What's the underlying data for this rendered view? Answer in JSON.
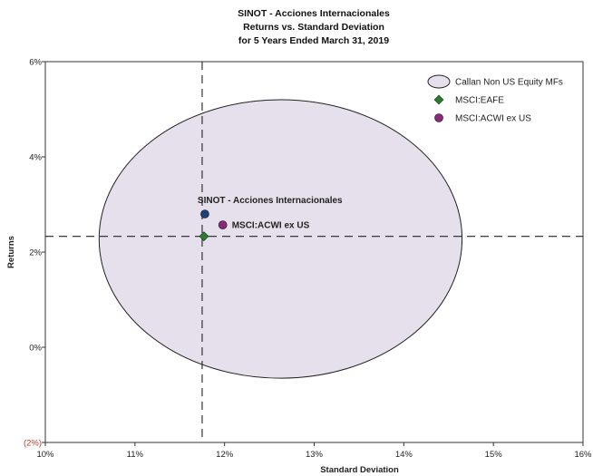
{
  "chart_data": {
    "type": "scatter",
    "title": [
      "SINOT - Acciones Internacionales",
      "Returns vs. Standard Deviation",
      "for 5 Years Ended March 31, 2019"
    ],
    "xlabel": "Standard Deviation",
    "ylabel": "Returns",
    "xlim": [
      10,
      16
    ],
    "ylim": [
      -2,
      6
    ],
    "x_ticks": [
      10,
      11,
      12,
      13,
      14,
      15,
      16
    ],
    "x_tick_labels": [
      "10%",
      "11%",
      "12%",
      "13%",
      "14%",
      "15%",
      "16%"
    ],
    "y_ticks": [
      -2,
      0,
      2,
      4,
      6
    ],
    "y_tick_labels": [
      "(2%)",
      "0%",
      "2%",
      "4%",
      "6%"
    ],
    "reference_lines": {
      "x": 11.75,
      "y": 2.33
    },
    "universe_ellipse": {
      "name": "Callan Non US Equity MFs",
      "x_range": [
        10.6,
        14.65
      ],
      "y_range": [
        -0.65,
        5.2
      ],
      "color": "#e6e0ec"
    },
    "points": [
      {
        "name": "SINOT - Acciones Internacionales",
        "x": 11.78,
        "y": 2.8,
        "color": "#1f3f7a",
        "shape": "circle"
      },
      {
        "name": "MSCI:ACWI ex US",
        "x": 11.98,
        "y": 2.57,
        "color": "#8b2a7a",
        "shape": "circle"
      },
      {
        "name": "MSCI:EAFE",
        "x": 11.77,
        "y": 2.33,
        "color": "#2f7a32",
        "shape": "diamond"
      }
    ],
    "legend": {
      "position": "top-right",
      "entries": [
        {
          "label": "Callan Non US Equity MFs",
          "marker": "ellipse"
        },
        {
          "label": "MSCI:EAFE",
          "marker": "diamond",
          "color": "#2f7a32"
        },
        {
          "label": "MSCI:ACWI ex US",
          "marker": "circle",
          "color": "#8b2a7a"
        }
      ]
    },
    "point_labels": [
      {
        "text": "SINOT - Acciones Internacionales",
        "for": "SINOT - Acciones Internacionales"
      },
      {
        "text": "MSCI:ACWI ex US",
        "for": "MSCI:ACWI ex US"
      }
    ]
  }
}
